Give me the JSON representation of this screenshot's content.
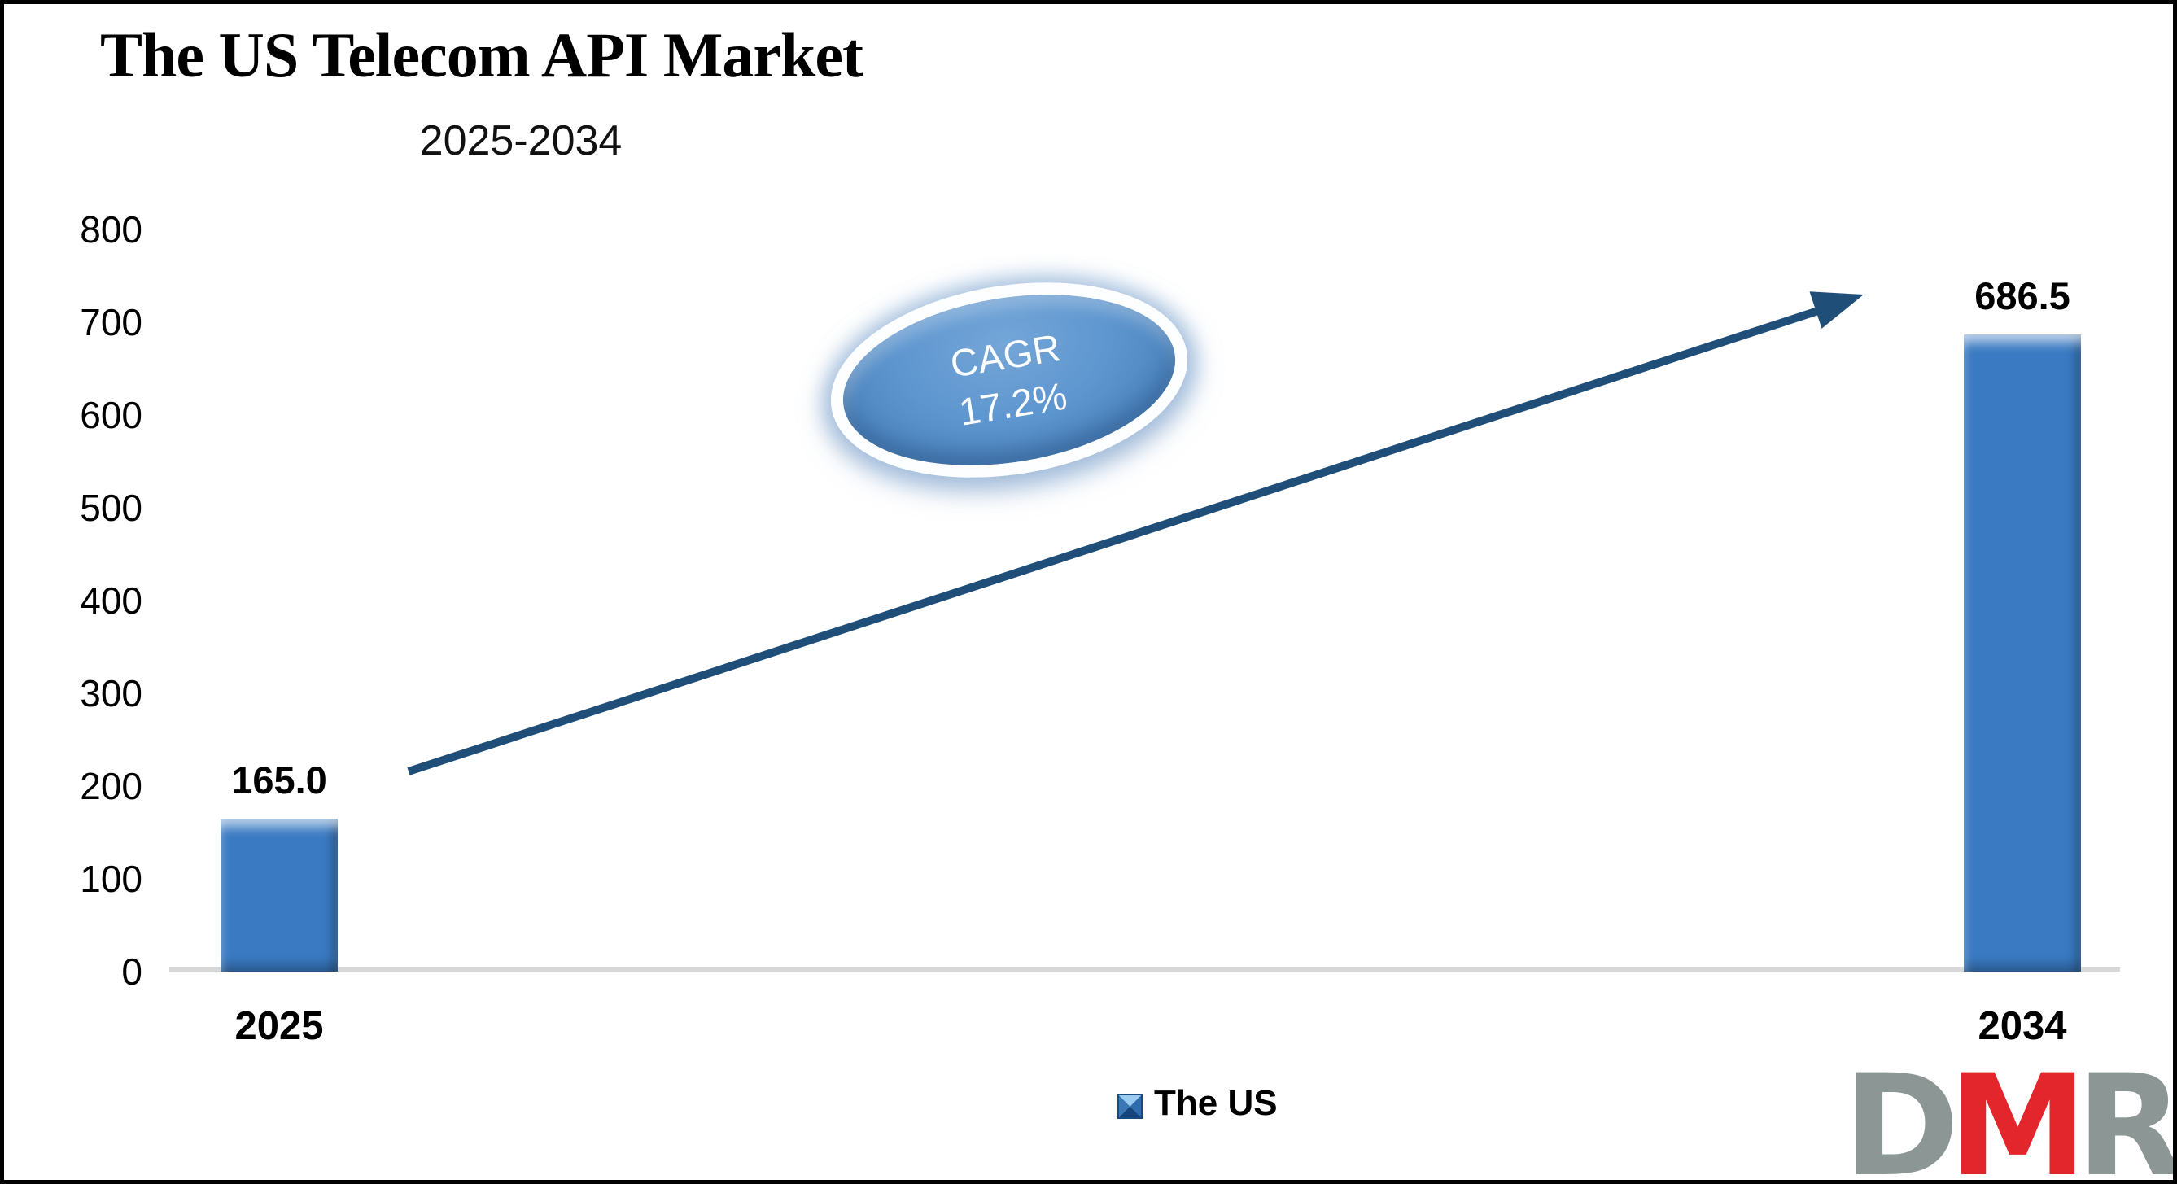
{
  "title": "The US Telecom API Market",
  "subtitle": "2025-2034",
  "legend": {
    "label": "The US",
    "swatch_color": "#3a7ac2"
  },
  "cagr_badge": {
    "line1": "CAGR",
    "line2": "17.2%"
  },
  "logo": {
    "d": "D",
    "m": "M",
    "r": "R",
    "gray": "#8c9795",
    "red": "#e2262b"
  },
  "colors": {
    "bar_fill": "#3a7ac2",
    "arrow": "#1f4e79",
    "baseline": "#d7d7d7",
    "badge_fill": "#5e96cf",
    "badge_ring": "#ffffff",
    "text": "#000000"
  },
  "chart_data": {
    "type": "bar",
    "title": "The US Telecom API Market",
    "subtitle": "2025-2034",
    "categories": [
      "2025",
      "2034"
    ],
    "series": [
      {
        "name": "The US",
        "values": [
          165.0,
          686.5
        ]
      }
    ],
    "value_labels": [
      "165.0",
      "686.5"
    ],
    "xlabel": "",
    "ylabel": "",
    "ylim": [
      0,
      800
    ],
    "yticks": [
      0,
      100,
      200,
      300,
      400,
      500,
      600,
      700,
      800
    ],
    "grid": false,
    "legend_position": "bottom-center",
    "annotations": [
      {
        "type": "ellipse-badge",
        "text": "CAGR 17.2%"
      },
      {
        "type": "trend-arrow",
        "from": "2025 bar",
        "to": "2034 bar"
      }
    ]
  }
}
